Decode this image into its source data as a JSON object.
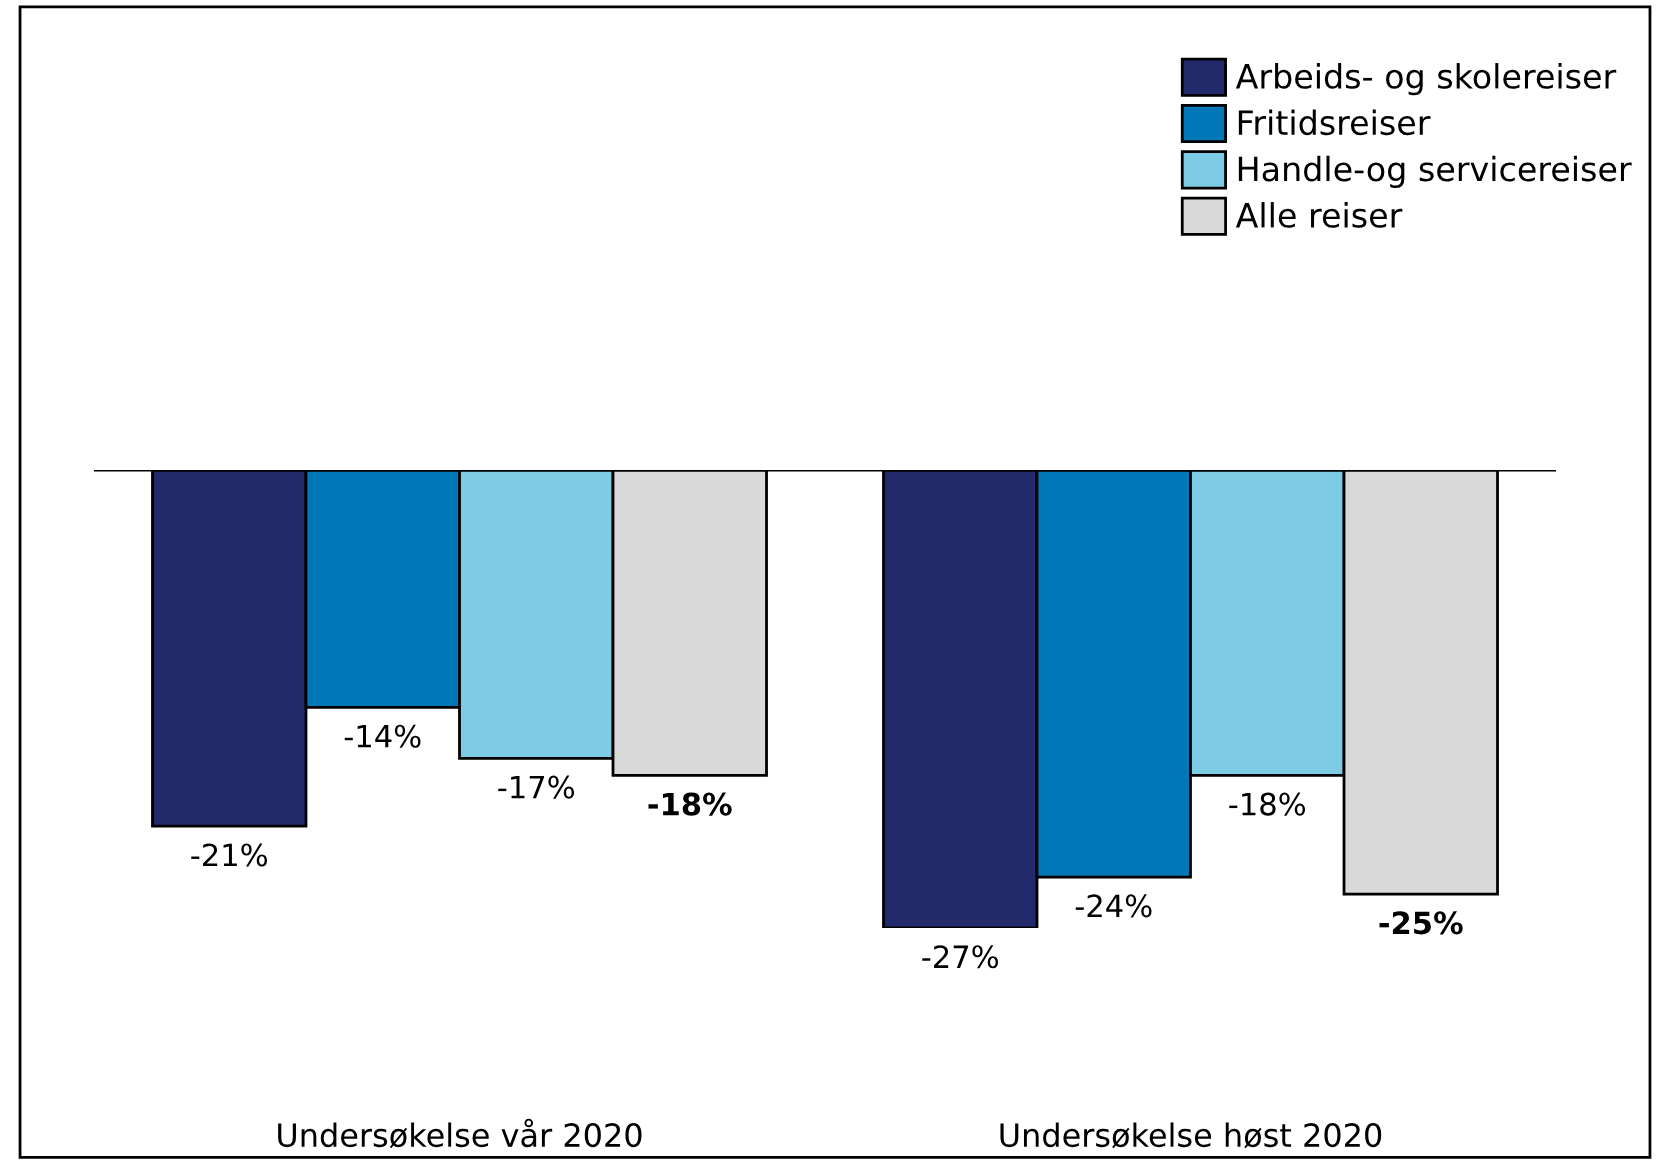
{
  "chart_data": {
    "type": "bar",
    "categories": [
      "Undersøkelse vår 2020",
      "Undersøkelse høst 2020"
    ],
    "series": [
      {
        "name": "Arbeids- og skolereiser",
        "color": "#232a6b",
        "values": [
          -21,
          -27
        ],
        "value_labels": [
          "-21%",
          "-27%"
        ]
      },
      {
        "name": "Fritidsreiser",
        "color": "#0077b6",
        "values": [
          -14,
          -24
        ],
        "value_labels": [
          "-14%",
          "-24%"
        ]
      },
      {
        "name": "Handle-og servicereiser",
        "color": "#7ecbe6",
        "values": [
          -17,
          -18
        ],
        "value_labels": [
          "-17%",
          "-18%"
        ]
      },
      {
        "name": "Alle reiser",
        "color": "#d9d9d9",
        "values": [
          -18,
          -25
        ],
        "value_labels": [
          "-18%",
          "-25%"
        ]
      }
    ],
    "tick_labels": "x",
    "grid": false,
    "legend": "top right"
  }
}
